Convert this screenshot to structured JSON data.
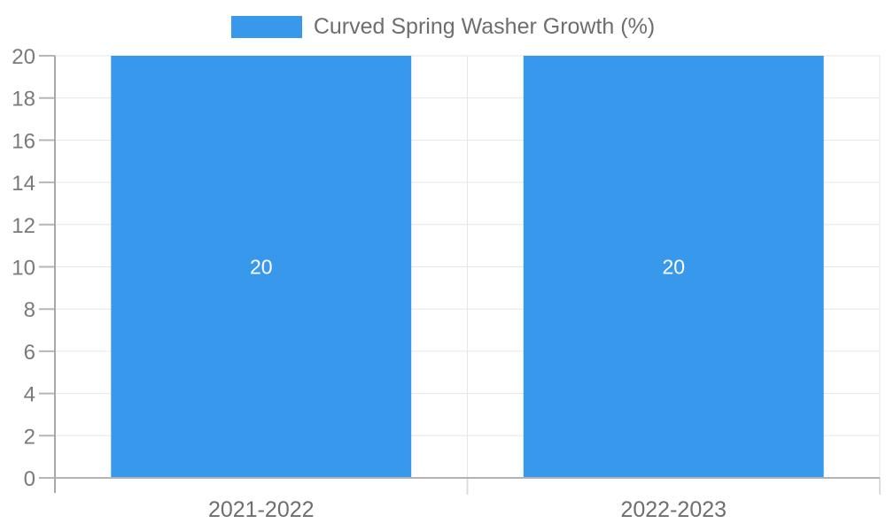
{
  "legend": {
    "label": "Curved Spring Washer Growth (%)"
  },
  "chart_data": {
    "type": "bar",
    "title": "",
    "xlabel": "",
    "ylabel": "",
    "categories": [
      "2021-2022",
      "2022-2023"
    ],
    "series": [
      {
        "name": "Curved Spring Washer Growth (%)",
        "values": [
          20,
          20
        ]
      }
    ],
    "data_labels": [
      "20",
      "20"
    ],
    "yticks": [
      0,
      2,
      4,
      6,
      8,
      10,
      12,
      14,
      16,
      18,
      20
    ],
    "ylim": [
      0,
      20
    ],
    "grid": true,
    "legend_position": "top",
    "colors": {
      "bar": "#3899EC",
      "grid": "#e6e6e6",
      "axis_y": "#a8a8a8",
      "axis_x": "#b3b3b3",
      "tick": "#b6b6b6",
      "below_tick": "#dcdcdc",
      "y_label_text": "#7a7a7a",
      "x_label_text": "#6e6e6e",
      "bar_label_text": "#ffffff",
      "legend_text": "#6e6e6e"
    }
  }
}
